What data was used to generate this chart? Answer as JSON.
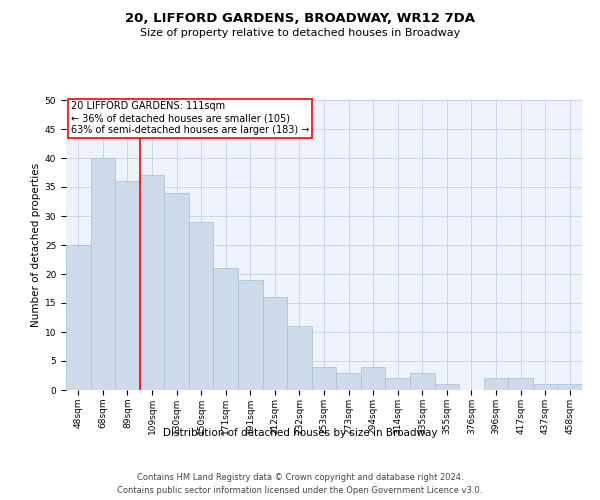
{
  "title": "20, LIFFORD GARDENS, BROADWAY, WR12 7DA",
  "subtitle": "Size of property relative to detached houses in Broadway",
  "xlabel": "Distribution of detached houses by size in Broadway",
  "ylabel": "Number of detached properties",
  "bar_labels": [
    "48sqm",
    "68sqm",
    "89sqm",
    "109sqm",
    "130sqm",
    "150sqm",
    "171sqm",
    "191sqm",
    "212sqm",
    "232sqm",
    "253sqm",
    "273sqm",
    "294sqm",
    "314sqm",
    "335sqm",
    "355sqm",
    "376sqm",
    "396sqm",
    "417sqm",
    "437sqm",
    "458sqm"
  ],
  "bar_values": [
    25,
    40,
    36,
    37,
    34,
    29,
    21,
    19,
    16,
    11,
    4,
    3,
    4,
    2,
    3,
    1,
    0,
    2,
    2,
    1,
    1
  ],
  "bar_color": "#ccdaea",
  "bar_edge_color": "#a8bfcf",
  "ylim": [
    0,
    50
  ],
  "yticks": [
    0,
    5,
    10,
    15,
    20,
    25,
    30,
    35,
    40,
    45,
    50
  ],
  "red_line_x": 2.5,
  "property_line_label": "20 LIFFORD GARDENS: 111sqm",
  "annotation_line1": "← 36% of detached houses are smaller (105)",
  "annotation_line2": "63% of semi-detached houses are larger (183) →",
  "footer1": "Contains HM Land Registry data © Crown copyright and database right 2024.",
  "footer2": "Contains public sector information licensed under the Open Government Licence v3.0.",
  "bg_color": "#eef2fb",
  "grid_color": "#c5cfe8",
  "title_fontsize": 9.5,
  "subtitle_fontsize": 8,
  "axis_label_fontsize": 7.5,
  "tick_fontsize": 6.5,
  "annotation_fontsize": 7,
  "footer_fontsize": 6
}
